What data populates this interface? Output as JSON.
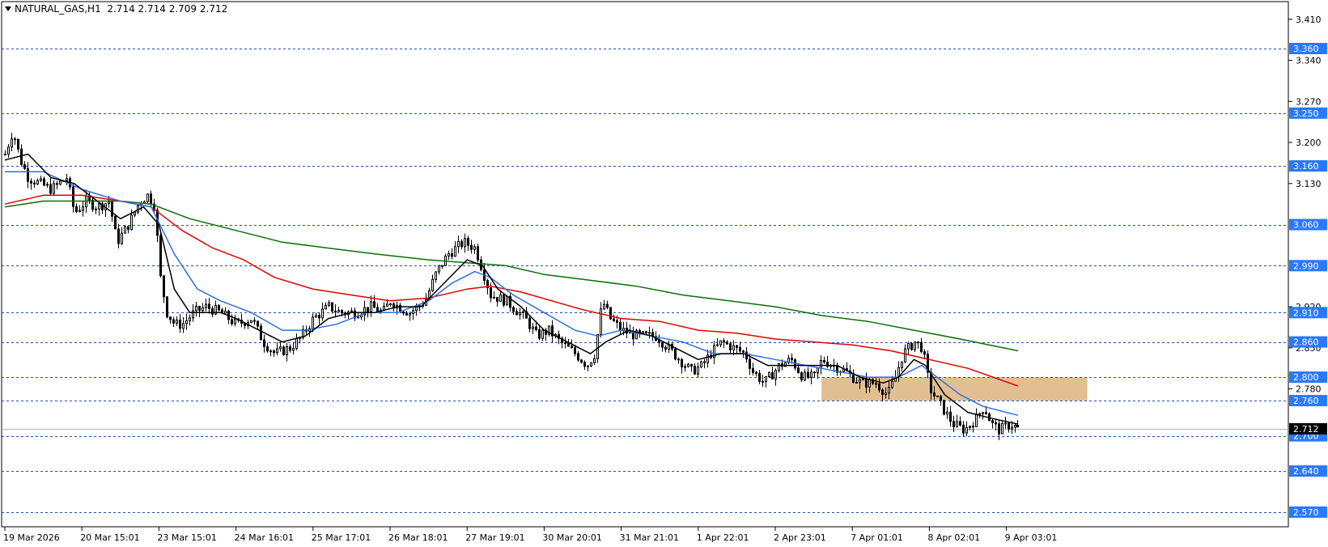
{
  "header": {
    "symbol": "NATURAL_GAS,H1",
    "ohlc": "2.714 2.714 2.709 2.712"
  },
  "colors": {
    "background": "#ffffff",
    "candle": "#000000",
    "level_line": "#1c4fb0",
    "level_badge": "#2979ff",
    "price_badge": "#000000",
    "ma_fast": "#000000",
    "ma_blue": "#2f6fe0",
    "ma_red": "#e00000",
    "ma_green": "#0a6e0a",
    "zone_fill": "#deb887"
  },
  "chart_data": {
    "type": "candlestick",
    "timeframe": "H1",
    "y_range": [
      2.545,
      3.44
    ],
    "price_axis_ticks": [
      "3.410",
      "3.340",
      "3.270",
      "3.200",
      "3.130",
      "2.920",
      "2.850",
      "2.780"
    ],
    "time_axis_labels": [
      "19 Mar 2026",
      "20 Mar 15:01",
      "23 Mar 15:01",
      "24 Mar 16:01",
      "25 Mar 17:01",
      "26 Mar 18:01",
      "27 Mar 19:01",
      "30 Mar 20:01",
      "31 Mar 21:01",
      "1 Apr 22:01",
      "2 Apr 23:01",
      "7 Apr 01:01",
      "8 Apr 02:01",
      "9 Apr 03:01"
    ],
    "horizontal_levels": [
      "3.360",
      "3.250",
      "3.160",
      "3.060",
      "2.990",
      "2.910",
      "2.860",
      "2.800",
      "2.760",
      "2.700",
      "2.640",
      "2.570"
    ],
    "current_price": "2.712",
    "zone": {
      "price_from": 2.76,
      "price_to": 2.8,
      "time_from": 10.6,
      "time_to": 14.05
    },
    "close_path": [
      [
        0.0,
        3.18
      ],
      [
        0.1,
        3.22
      ],
      [
        0.2,
        3.17
      ],
      [
        0.3,
        3.14
      ],
      [
        0.45,
        3.13
      ],
      [
        0.6,
        3.12
      ],
      [
        0.8,
        3.14
      ],
      [
        0.9,
        3.08
      ],
      [
        1.05,
        3.1
      ],
      [
        1.2,
        3.09
      ],
      [
        1.35,
        3.1
      ],
      [
        1.45,
        3.03
      ],
      [
        1.6,
        3.06
      ],
      [
        1.75,
        3.1
      ],
      [
        1.85,
        3.11
      ],
      [
        1.95,
        3.09
      ],
      [
        2.0,
        2.98
      ],
      [
        2.1,
        2.91
      ],
      [
        2.2,
        2.89
      ],
      [
        2.3,
        2.89
      ],
      [
        2.45,
        2.91
      ],
      [
        2.6,
        2.92
      ],
      [
        2.8,
        2.91
      ],
      [
        3.0,
        2.89
      ],
      [
        3.2,
        2.9
      ],
      [
        3.35,
        2.86
      ],
      [
        3.5,
        2.84
      ],
      [
        3.7,
        2.85
      ],
      [
        3.85,
        2.87
      ],
      [
        4.0,
        2.9
      ],
      [
        4.2,
        2.92
      ],
      [
        4.35,
        2.91
      ],
      [
        4.55,
        2.91
      ],
      [
        4.75,
        2.92
      ],
      [
        4.9,
        2.91
      ],
      [
        5.0,
        2.93
      ],
      [
        5.1,
        2.92
      ],
      [
        5.25,
        2.91
      ],
      [
        5.45,
        2.93
      ],
      [
        5.6,
        2.98
      ],
      [
        5.75,
        3.01
      ],
      [
        5.95,
        3.03
      ],
      [
        6.1,
        3.02
      ],
      [
        6.2,
        2.98
      ],
      [
        6.3,
        2.94
      ],
      [
        6.5,
        2.93
      ],
      [
        6.75,
        2.9
      ],
      [
        6.9,
        2.87
      ],
      [
        7.05,
        2.88
      ],
      [
        7.2,
        2.86
      ],
      [
        7.4,
        2.84
      ],
      [
        7.55,
        2.82
      ],
      [
        7.65,
        2.84
      ],
      [
        7.75,
        2.93
      ],
      [
        7.85,
        2.9
      ],
      [
        8.0,
        2.88
      ],
      [
        8.2,
        2.87
      ],
      [
        8.45,
        2.87
      ],
      [
        8.6,
        2.85
      ],
      [
        8.75,
        2.83
      ],
      [
        8.9,
        2.81
      ],
      [
        9.05,
        2.82
      ],
      [
        9.15,
        2.84
      ],
      [
        9.3,
        2.86
      ],
      [
        9.45,
        2.85
      ],
      [
        9.6,
        2.84
      ],
      [
        9.7,
        2.81
      ],
      [
        9.85,
        2.79
      ],
      [
        10.05,
        2.82
      ],
      [
        10.2,
        2.83
      ],
      [
        10.35,
        2.8
      ],
      [
        10.5,
        2.8
      ],
      [
        10.6,
        2.83
      ],
      [
        10.75,
        2.82
      ],
      [
        10.9,
        2.81
      ],
      [
        11.1,
        2.79
      ],
      [
        11.3,
        2.79
      ],
      [
        11.45,
        2.77
      ],
      [
        11.55,
        2.8
      ],
      [
        11.65,
        2.84
      ],
      [
        11.8,
        2.86
      ],
      [
        11.9,
        2.85
      ],
      [
        12.0,
        2.78
      ],
      [
        12.15,
        2.75
      ],
      [
        12.3,
        2.72
      ],
      [
        12.45,
        2.71
      ],
      [
        12.6,
        2.73
      ],
      [
        12.7,
        2.75
      ],
      [
        12.8,
        2.72
      ],
      [
        12.9,
        2.71
      ],
      [
        13.05,
        2.72
      ],
      [
        13.15,
        2.712
      ]
    ],
    "ma_fast": [
      [
        0.0,
        3.17
      ],
      [
        0.3,
        3.18
      ],
      [
        0.6,
        3.14
      ],
      [
        0.9,
        3.13
      ],
      [
        1.2,
        3.1
      ],
      [
        1.5,
        3.07
      ],
      [
        1.8,
        3.09
      ],
      [
        2.0,
        3.06
      ],
      [
        2.2,
        2.95
      ],
      [
        2.4,
        2.91
      ],
      [
        2.6,
        2.91
      ],
      [
        2.8,
        2.91
      ],
      [
        3.0,
        2.9
      ],
      [
        3.3,
        2.88
      ],
      [
        3.6,
        2.86
      ],
      [
        3.9,
        2.87
      ],
      [
        4.2,
        2.9
      ],
      [
        4.5,
        2.91
      ],
      [
        4.8,
        2.91
      ],
      [
        5.1,
        2.92
      ],
      [
        5.4,
        2.92
      ],
      [
        5.7,
        2.96
      ],
      [
        6.0,
        3.0
      ],
      [
        6.2,
        2.99
      ],
      [
        6.4,
        2.95
      ],
      [
        6.7,
        2.92
      ],
      [
        7.0,
        2.88
      ],
      [
        7.3,
        2.86
      ],
      [
        7.6,
        2.84
      ],
      [
        7.8,
        2.86
      ],
      [
        8.1,
        2.88
      ],
      [
        8.4,
        2.87
      ],
      [
        8.7,
        2.85
      ],
      [
        9.0,
        2.83
      ],
      [
        9.3,
        2.84
      ],
      [
        9.6,
        2.84
      ],
      [
        9.9,
        2.82
      ],
      [
        10.2,
        2.82
      ],
      [
        10.5,
        2.82
      ],
      [
        10.8,
        2.82
      ],
      [
        11.1,
        2.8
      ],
      [
        11.4,
        2.79
      ],
      [
        11.6,
        2.8
      ],
      [
        11.8,
        2.83
      ],
      [
        11.95,
        2.82
      ],
      [
        12.2,
        2.77
      ],
      [
        12.5,
        2.74
      ],
      [
        12.8,
        2.73
      ],
      [
        13.15,
        2.72
      ]
    ],
    "ma_blue": [
      [
        0.0,
        3.15
      ],
      [
        0.5,
        3.15
      ],
      [
        1.0,
        3.12
      ],
      [
        1.5,
        3.1
      ],
      [
        1.9,
        3.09
      ],
      [
        2.2,
        3.01
      ],
      [
        2.5,
        2.95
      ],
      [
        2.8,
        2.93
      ],
      [
        3.2,
        2.91
      ],
      [
        3.6,
        2.88
      ],
      [
        3.9,
        2.88
      ],
      [
        4.3,
        2.89
      ],
      [
        4.7,
        2.91
      ],
      [
        5.1,
        2.91
      ],
      [
        5.5,
        2.93
      ],
      [
        5.8,
        2.96
      ],
      [
        6.1,
        2.98
      ],
      [
        6.3,
        2.97
      ],
      [
        6.6,
        2.94
      ],
      [
        7.0,
        2.91
      ],
      [
        7.4,
        2.88
      ],
      [
        7.7,
        2.87
      ],
      [
        8.0,
        2.88
      ],
      [
        8.4,
        2.87
      ],
      [
        8.8,
        2.86
      ],
      [
        9.2,
        2.84
      ],
      [
        9.6,
        2.84
      ],
      [
        10.0,
        2.83
      ],
      [
        10.4,
        2.82
      ],
      [
        10.8,
        2.81
      ],
      [
        11.2,
        2.8
      ],
      [
        11.6,
        2.8
      ],
      [
        11.9,
        2.82
      ],
      [
        12.1,
        2.8
      ],
      [
        12.4,
        2.77
      ],
      [
        12.7,
        2.75
      ],
      [
        13.0,
        2.74
      ],
      [
        13.15,
        2.735
      ]
    ],
    "ma_red": [
      [
        0.0,
        3.095
      ],
      [
        0.5,
        3.11
      ],
      [
        1.0,
        3.11
      ],
      [
        1.5,
        3.1
      ],
      [
        1.9,
        3.09
      ],
      [
        2.3,
        3.05
      ],
      [
        2.7,
        3.02
      ],
      [
        3.1,
        3.0
      ],
      [
        3.5,
        2.97
      ],
      [
        4.0,
        2.95
      ],
      [
        4.5,
        2.94
      ],
      [
        5.0,
        2.93
      ],
      [
        5.5,
        2.935
      ],
      [
        6.0,
        2.95
      ],
      [
        6.3,
        2.955
      ],
      [
        6.7,
        2.945
      ],
      [
        7.1,
        2.93
      ],
      [
        7.5,
        2.915
      ],
      [
        8.0,
        2.9
      ],
      [
        8.5,
        2.895
      ],
      [
        9.0,
        2.88
      ],
      [
        9.5,
        2.875
      ],
      [
        10.0,
        2.865
      ],
      [
        10.5,
        2.86
      ],
      [
        11.0,
        2.855
      ],
      [
        11.5,
        2.845
      ],
      [
        12.0,
        2.83
      ],
      [
        12.5,
        2.815
      ],
      [
        13.15,
        2.785
      ]
    ],
    "ma_green": [
      [
        0.0,
        3.09
      ],
      [
        0.5,
        3.1
      ],
      [
        1.0,
        3.1
      ],
      [
        1.5,
        3.1
      ],
      [
        1.9,
        3.095
      ],
      [
        2.4,
        3.07
      ],
      [
        3.0,
        3.05
      ],
      [
        3.6,
        3.03
      ],
      [
        4.2,
        3.02
      ],
      [
        4.8,
        3.01
      ],
      [
        5.5,
        3.0
      ],
      [
        6.0,
        2.995
      ],
      [
        6.5,
        2.99
      ],
      [
        7.0,
        2.975
      ],
      [
        7.6,
        2.965
      ],
      [
        8.2,
        2.955
      ],
      [
        8.8,
        2.94
      ],
      [
        9.4,
        2.93
      ],
      [
        10.0,
        2.92
      ],
      [
        10.6,
        2.905
      ],
      [
        11.2,
        2.895
      ],
      [
        11.8,
        2.88
      ],
      [
        12.4,
        2.865
      ],
      [
        13.15,
        2.845
      ]
    ]
  }
}
